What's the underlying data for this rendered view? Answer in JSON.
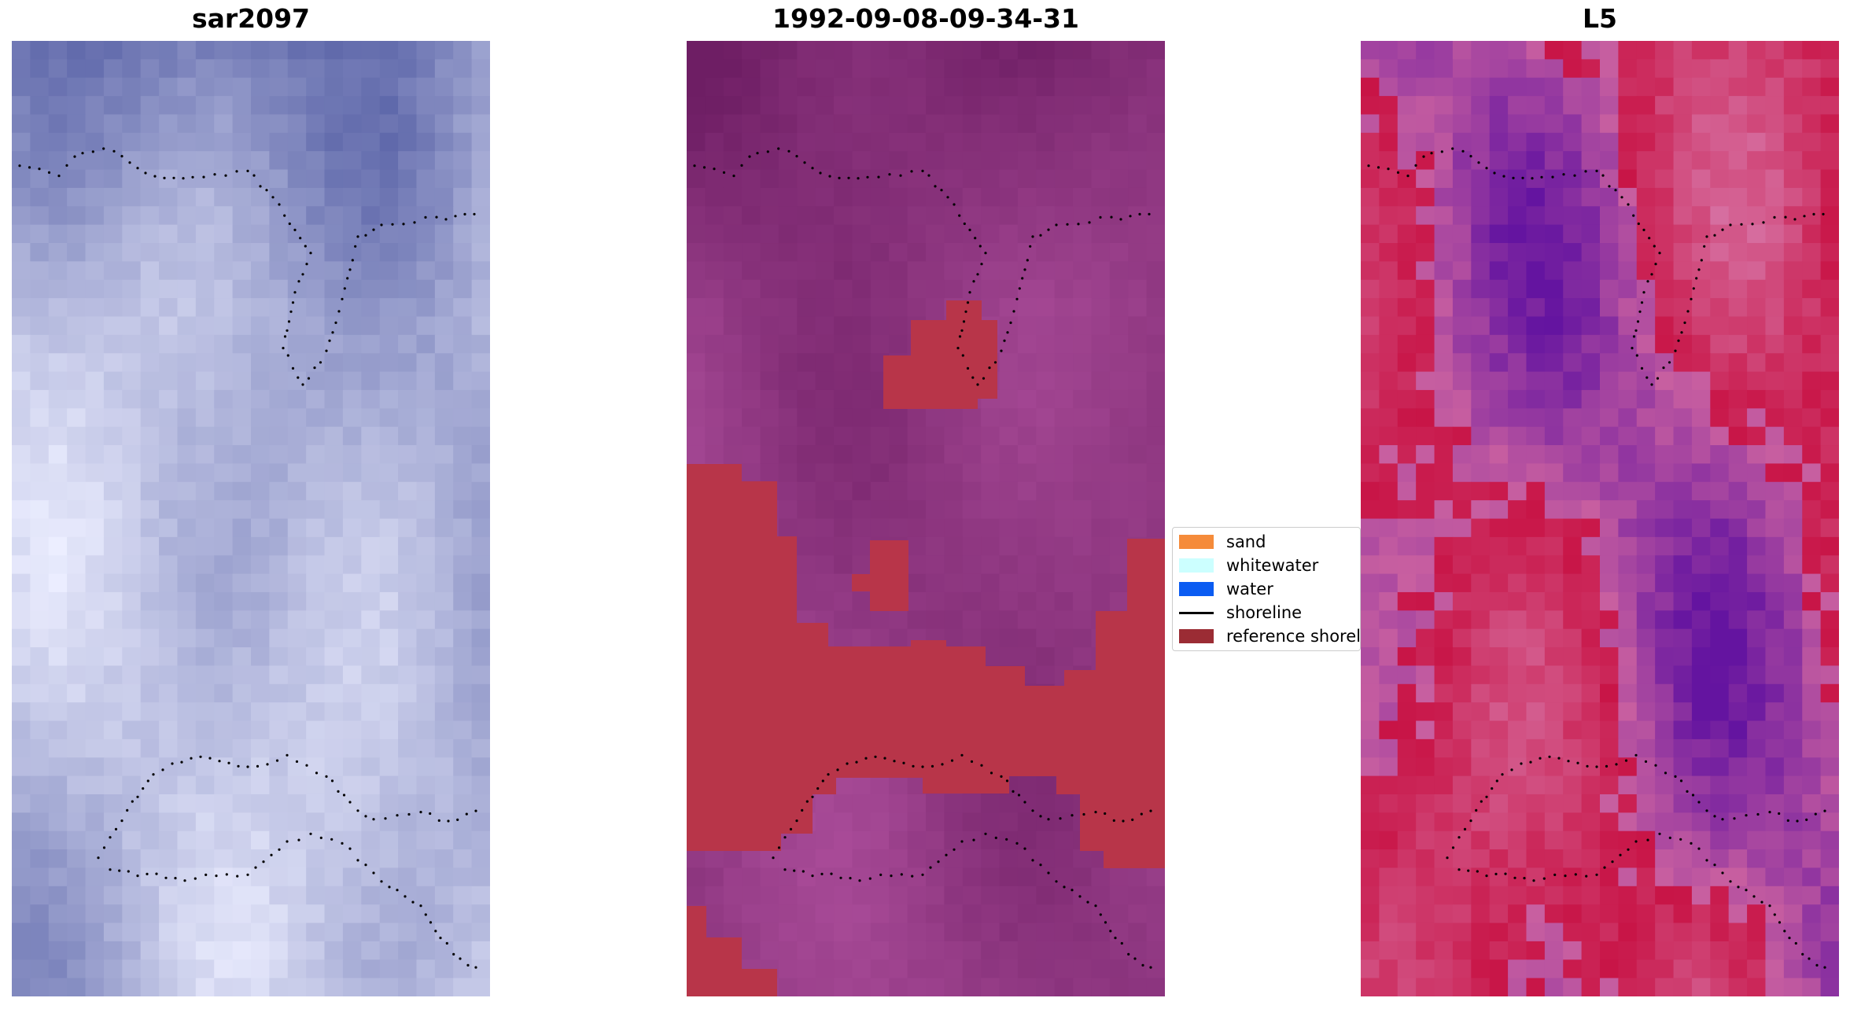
{
  "panels": [
    {
      "title": "sar2097",
      "palette": "blue"
    },
    {
      "title": "1992-09-08-09-34-31",
      "palette": "purple"
    },
    {
      "title": "L5",
      "palette": "pinkpurple"
    }
  ],
  "legend": {
    "items": [
      {
        "label": "sand",
        "color": "#f58b3a",
        "kind": "patch"
      },
      {
        "label": "whitewater",
        "color": "#ccffff",
        "kind": "patch"
      },
      {
        "label": "water",
        "color": "#0b5cf2",
        "kind": "patch"
      },
      {
        "label": "shoreline",
        "color": "#000000",
        "kind": "line"
      },
      {
        "label": "reference shoreline",
        "color": "#9b2c34",
        "kind": "patch"
      }
    ]
  },
  "colors": {
    "reference_fill": "#b83549",
    "shoreline_dots": "#000000"
  }
}
